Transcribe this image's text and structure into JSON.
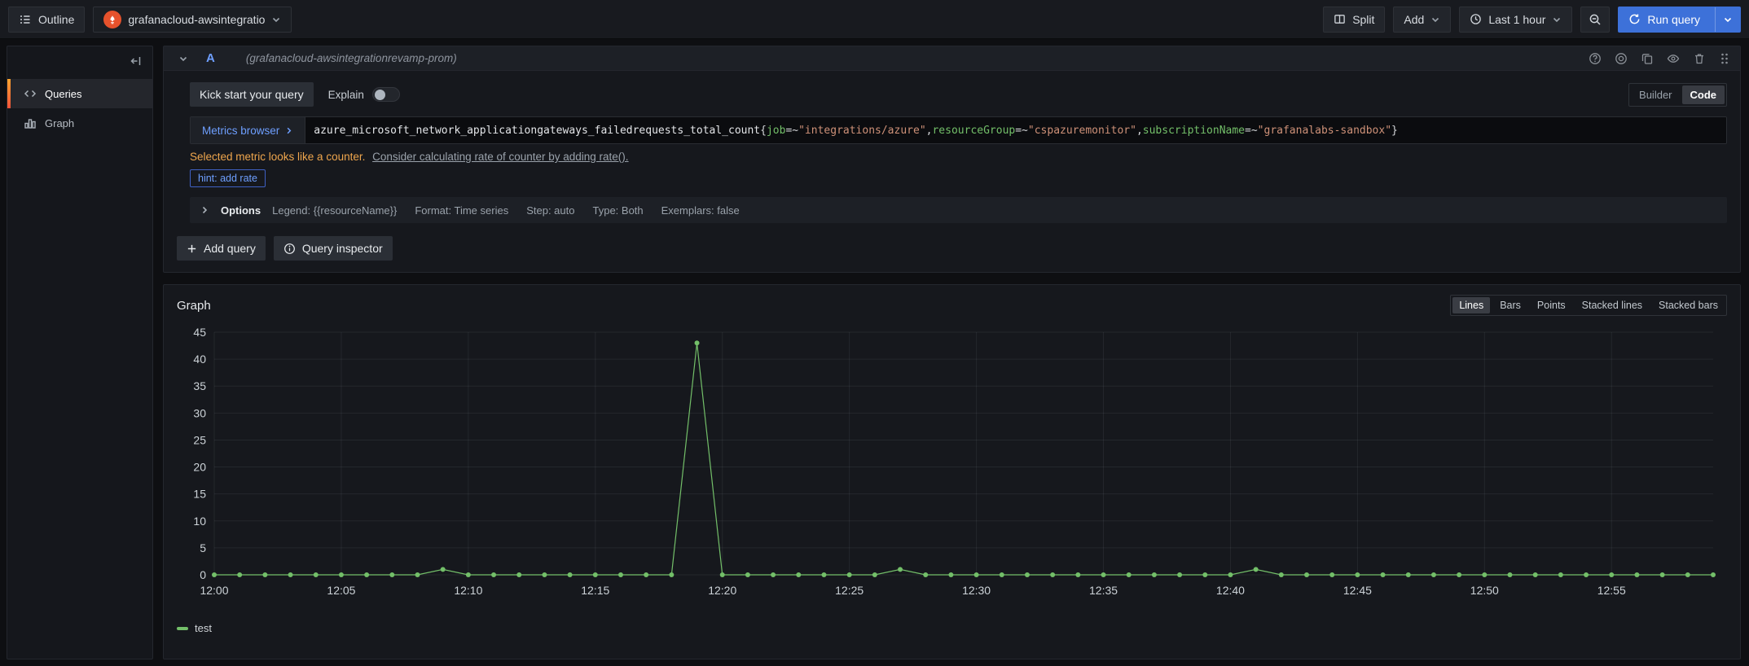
{
  "colors": {
    "primary_blue": "#3d71d9",
    "accent_blue_text": "#6e9fff",
    "warning_orange": "#efa64d",
    "series_green": "#73bf69",
    "prometheus_orange": "#e6522c"
  },
  "topbar": {
    "outline_label": "Outline",
    "datasource_name": "grafanacloud-awsintegrationrevamp-prom",
    "split_label": "Split",
    "add_label": "Add",
    "time_range_label": "Last 1 hour",
    "run_query_label": "Run query"
  },
  "sidebar": {
    "items": [
      {
        "label": "Queries",
        "icon": "code-icon",
        "active": true
      },
      {
        "label": "Graph",
        "icon": "bar-chart-icon",
        "active": false
      }
    ]
  },
  "query_editor": {
    "ref": "A",
    "datasource_hint": "(grafanacloud-awsintegrationrevamp-prom)",
    "kick_start_label": "Kick start your query",
    "explain_label": "Explain",
    "builder_label": "Builder",
    "code_label": "Code",
    "metrics_browser_label": "Metrics browser",
    "query_segments": [
      {
        "text": "azure_microsoft_network_applicationgateways_failedrequests_total_count",
        "type": "metric"
      },
      {
        "text": "{",
        "type": "punct"
      },
      {
        "text": "job",
        "type": "label"
      },
      {
        "text": "=~",
        "type": "op"
      },
      {
        "text": "\"integrations/azure\"",
        "type": "string"
      },
      {
        "text": ", ",
        "type": "punct"
      },
      {
        "text": "resourceGroup",
        "type": "label"
      },
      {
        "text": "=~",
        "type": "op"
      },
      {
        "text": "\"cspazuremonitor\"",
        "type": "string"
      },
      {
        "text": ", ",
        "type": "punct"
      },
      {
        "text": "subscriptionName",
        "type": "label"
      },
      {
        "text": "=~",
        "type": "op"
      },
      {
        "text": "\"grafanalabs-sandbox\"",
        "type": "string"
      },
      {
        "text": "}",
        "type": "punct"
      }
    ],
    "warning_text": "Selected metric looks like a counter.",
    "warning_link": "Consider calculating rate of counter by adding rate().",
    "hint_label": "hint: add rate",
    "options_label": "Options",
    "options_summary": [
      "Legend: {{resourceName}}",
      "Format: Time series",
      "Step: auto",
      "Type: Both",
      "Exemplars: false"
    ],
    "add_query_label": "Add query",
    "query_inspector_label": "Query inspector"
  },
  "graph": {
    "title": "Graph",
    "modes": [
      "Lines",
      "Bars",
      "Points",
      "Stacked lines",
      "Stacked bars"
    ],
    "active_mode": "Lines",
    "legend_label": "test"
  },
  "chart_data": {
    "type": "line",
    "title": "Graph",
    "x_start": "12:00",
    "x_step_minutes": 1,
    "x_tick_labels": [
      "12:00",
      "12:05",
      "12:10",
      "12:15",
      "12:20",
      "12:25",
      "12:30",
      "12:35",
      "12:40",
      "12:45",
      "12:50",
      "12:55"
    ],
    "y_ticks": [
      0,
      5,
      10,
      15,
      20,
      25,
      30,
      35,
      40,
      45
    ],
    "ylim": [
      0,
      45
    ],
    "grid": true,
    "legend_position": "bottom-left",
    "series": [
      {
        "name": "test",
        "color": "#73bf69",
        "values": [
          0,
          0,
          0,
          0,
          0,
          0,
          0,
          0,
          0,
          1,
          0,
          0,
          0,
          0,
          0,
          0,
          0,
          0,
          0,
          43,
          0,
          0,
          0,
          0,
          0,
          0,
          0,
          1,
          0,
          0,
          0,
          0,
          0,
          0,
          0,
          0,
          0,
          0,
          0,
          0,
          0,
          1,
          0,
          0,
          0,
          0,
          0,
          0,
          0,
          0,
          0,
          0,
          0,
          0,
          0,
          0,
          0,
          0,
          0,
          0
        ]
      }
    ]
  }
}
